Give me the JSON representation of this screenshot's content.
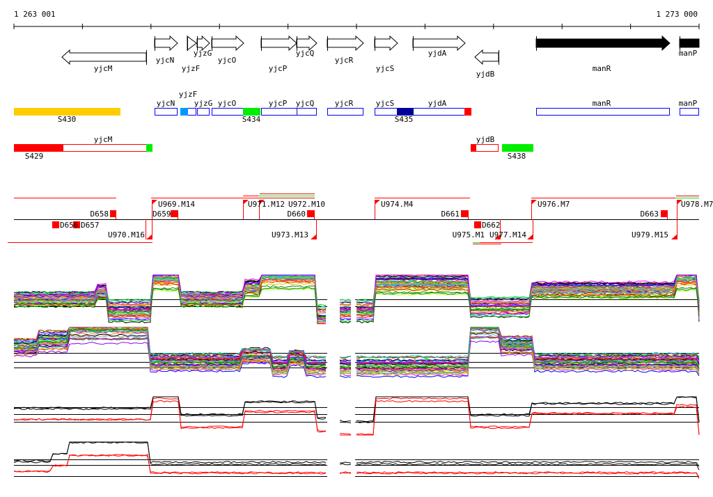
{
  "ruler": {
    "start_label": "1 263 001",
    "end_label": "1 273 000"
  },
  "genes": [
    {
      "name": "yjcM",
      "strand": "-",
      "fill": "#ffffff"
    },
    {
      "name": "yjcN",
      "strand": "+",
      "fill": "#ffffff"
    },
    {
      "name": "yjzF",
      "strand": "+",
      "fill": "#ffffff"
    },
    {
      "name": "yjzG",
      "strand": "+",
      "fill": "#ffffff"
    },
    {
      "name": "yjcO",
      "strand": "+",
      "fill": "#ffffff"
    },
    {
      "name": "yjcP",
      "strand": "+",
      "fill": "#ffffff"
    },
    {
      "name": "yjcQ",
      "strand": "+",
      "fill": "#ffffff"
    },
    {
      "name": "yjcR",
      "strand": "+",
      "fill": "#ffffff"
    },
    {
      "name": "yjcS",
      "strand": "+",
      "fill": "#ffffff"
    },
    {
      "name": "yjdA",
      "strand": "+",
      "fill": "#ffffff"
    },
    {
      "name": "yjdB",
      "strand": "-",
      "fill": "#ffffff"
    },
    {
      "name": "manR",
      "strand": "+",
      "fill": "#000000"
    },
    {
      "name": "manP",
      "strand": "+",
      "fill": "#000000"
    }
  ],
  "operon_labels_plus": [
    "yjcN",
    "yjzF",
    "yjzG",
    "yjcO",
    "yjcP",
    "yjcQ",
    "yjcR",
    "yjcS",
    "yjdA",
    "manR",
    "manP"
  ],
  "operon_labels_minus": [
    "yjcM",
    "yjdB"
  ],
  "segments": [
    "S430",
    "S434",
    "S435",
    "S429",
    "S438"
  ],
  "segment_colors": {
    "S430": "#ffcc00",
    "S434": "#00ee00",
    "S435": "#000099",
    "S429": "#ff0000",
    "S438": "#00ee00",
    "yjzF_mark": "#0099ff"
  },
  "upshifts": [
    "U969.M14",
    "U970.M16",
    "U971.M12",
    "U972.M10",
    "U973.M13",
    "U974.M4",
    "U975.M1",
    "U977.M14",
    "U976.M7",
    "U979.M15",
    "U978.M7"
  ],
  "downshifts": [
    "D656",
    "D657",
    "D658",
    "D659",
    "D660",
    "D661",
    "D662",
    "D663"
  ],
  "colors": {
    "transcript": "#ff0000",
    "gene_box": "#0000ff",
    "axis": "#000000"
  }
}
